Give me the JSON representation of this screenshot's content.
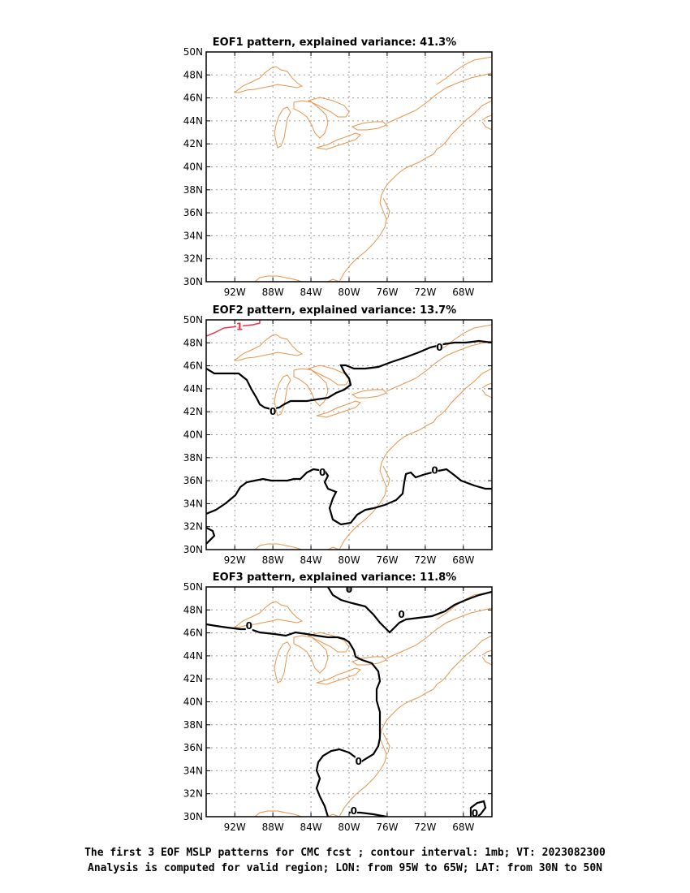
{
  "colors": {
    "coast": "#e8944a",
    "zero_contour": "#000000",
    "pos_contour": "#e8344a",
    "grid": "#9a9a9a",
    "frame": "#000000"
  },
  "axes": {
    "x_ticks": [
      "92W",
      "88W",
      "84W",
      "80W",
      "76W",
      "72W",
      "68W"
    ],
    "x_values": [
      -92,
      -88,
      -84,
      -80,
      -76,
      -72,
      -68
    ],
    "y_ticks": [
      "30N",
      "32N",
      "34N",
      "36N",
      "38N",
      "40N",
      "42N",
      "44N",
      "46N",
      "48N",
      "50N"
    ],
    "y_values": [
      30,
      32,
      34,
      36,
      38,
      40,
      42,
      44,
      46,
      48,
      50
    ],
    "xlim": [
      -95,
      -65
    ],
    "ylim": [
      30,
      50
    ],
    "grid": true
  },
  "panels": [
    {
      "title": "EOF1 pattern, explained variance: 41.3%",
      "contour_labels": []
    },
    {
      "title": "EOF2 pattern, explained variance: 13.7%",
      "contour_labels": [
        {
          "text": "1",
          "lon": -91.5,
          "lat": 49.4,
          "color": "pos"
        },
        {
          "text": "0",
          "lon": -88.0,
          "lat": 42.0,
          "color": "zero"
        },
        {
          "text": "0",
          "lon": -70.5,
          "lat": 47.6,
          "color": "zero"
        },
        {
          "text": "0",
          "lon": -82.8,
          "lat": 36.7,
          "color": "zero"
        },
        {
          "text": "0",
          "lon": -71.0,
          "lat": 36.9,
          "color": "zero"
        }
      ]
    },
    {
      "title": "EOF3 pattern, explained variance: 11.8%",
      "contour_labels": [
        {
          "text": "0",
          "lon": -80.0,
          "lat": 49.8,
          "color": "zero"
        },
        {
          "text": "0",
          "lon": -74.5,
          "lat": 47.6,
          "color": "zero"
        },
        {
          "text": "0",
          "lon": -90.5,
          "lat": 46.6,
          "color": "zero"
        },
        {
          "text": "0",
          "lon": -79.0,
          "lat": 34.8,
          "color": "zero"
        },
        {
          "text": "0",
          "lon": -79.5,
          "lat": 30.5,
          "color": "zero"
        },
        {
          "text": "0",
          "lon": -66.8,
          "lat": 30.3,
          "color": "zero"
        }
      ]
    }
  ],
  "caption": {
    "line1": "The first 3 EOF MSLP patterns for CMC fcst ; contour interval: 1mb; VT: 2023082300",
    "line2": "Analysis is computed for valid region; LON: from 95W to 65W; LAT: from 30N to 50N"
  }
}
